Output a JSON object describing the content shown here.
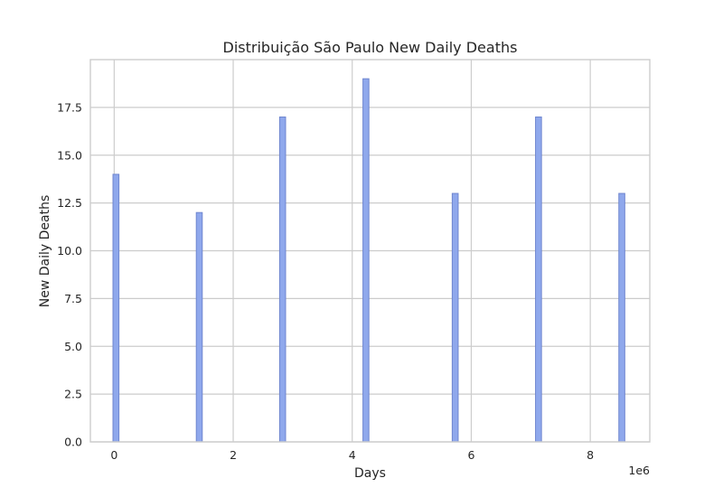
{
  "chart_data": {
    "type": "bar",
    "title": "Distribuição São Paulo New Daily Deaths",
    "xlabel": "Days",
    "ylabel": "New Daily Deaths",
    "x_offset_label": "1e6",
    "x": [
      0.03,
      1.43,
      2.83,
      4.23,
      5.73,
      7.13,
      8.53
    ],
    "values": [
      14,
      12,
      17,
      19,
      13,
      17,
      13
    ],
    "bar_width": 0.1,
    "xlim": [
      -0.4,
      9.0
    ],
    "ylim": [
      0,
      20
    ],
    "x_ticks": [
      {
        "value": 0,
        "label": "0"
      },
      {
        "value": 2,
        "label": "2"
      },
      {
        "value": 4,
        "label": "4"
      },
      {
        "value": 6,
        "label": "6"
      },
      {
        "value": 8,
        "label": "8"
      }
    ],
    "y_ticks": [
      {
        "value": 0,
        "label": "0.0"
      },
      {
        "value": 2.5,
        "label": "2.5"
      },
      {
        "value": 5,
        "label": "5.0"
      },
      {
        "value": 7.5,
        "label": "7.5"
      },
      {
        "value": 10,
        "label": "10.0"
      },
      {
        "value": 12.5,
        "label": "12.5"
      },
      {
        "value": 15,
        "label": "15.0"
      },
      {
        "value": 17.5,
        "label": "17.5"
      }
    ],
    "grid": true,
    "bar_color": "#8fa8ec",
    "bar_edge_color": "#6f86cf"
  }
}
